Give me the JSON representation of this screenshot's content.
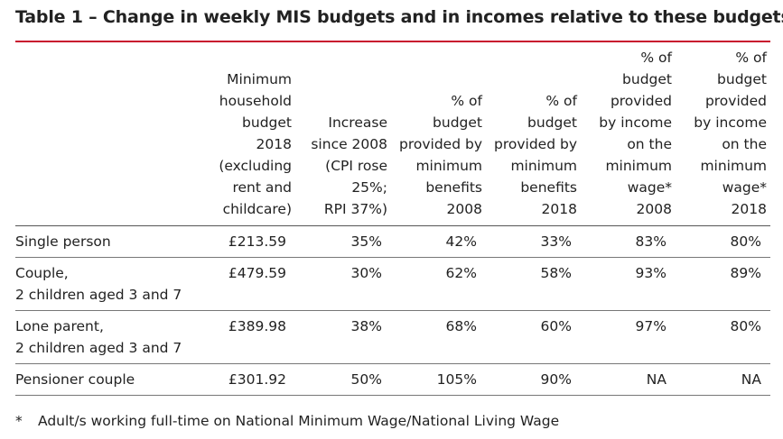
{
  "title": "Table 1 – Change in weekly MIS budgets and in incomes relative to these budgets",
  "table": {
    "columns": [
      "",
      "Minimum\nhousehold\nbudget\n2018\n(excluding\nrent and\nchildcare)",
      "Increase\nsince 2008\n(CPI rose\n25%;\nRPI 37%)",
      "% of\nbudget\nprovided by\nminimum\nbenefits\n2008",
      "% of\nbudget\nprovided by\nminimum\nbenefits\n2018",
      "% of\nbudget\nprovided\nby income\non the\nminimum\nwage*\n2008",
      "% of\nbudget\nprovided\nby income\non the\nminimum\nwage*\n2018"
    ],
    "rows": [
      {
        "label": "Single person",
        "budget": "£213.59",
        "increase": "35%",
        "benefits_2008": "42%",
        "benefits_2018": "33%",
        "wage_2008": "83%",
        "wage_2018": "80%"
      },
      {
        "label": "Couple,\n2 children aged 3 and 7",
        "budget": "£479.59",
        "increase": "30%",
        "benefits_2008": "62%",
        "benefits_2018": "58%",
        "wage_2008": "93%",
        "wage_2018": "89%"
      },
      {
        "label": "Lone parent,\n2 children aged 3 and 7",
        "budget": "£389.98",
        "increase": "38%",
        "benefits_2008": "68%",
        "benefits_2018": "60%",
        "wage_2008": "97%",
        "wage_2018": "80%"
      },
      {
        "label": "Pensioner couple",
        "budget": "£301.92",
        "increase": "50%",
        "benefits_2008": "105%",
        "benefits_2018": "90%",
        "wage_2008": "NA",
        "wage_2018": "NA"
      }
    ]
  },
  "footnote": {
    "mark": "*",
    "text": "Adult/s working full-time on National Minimum Wage/National Living Wage"
  },
  "colors": {
    "title_rule": "#c8102e"
  }
}
